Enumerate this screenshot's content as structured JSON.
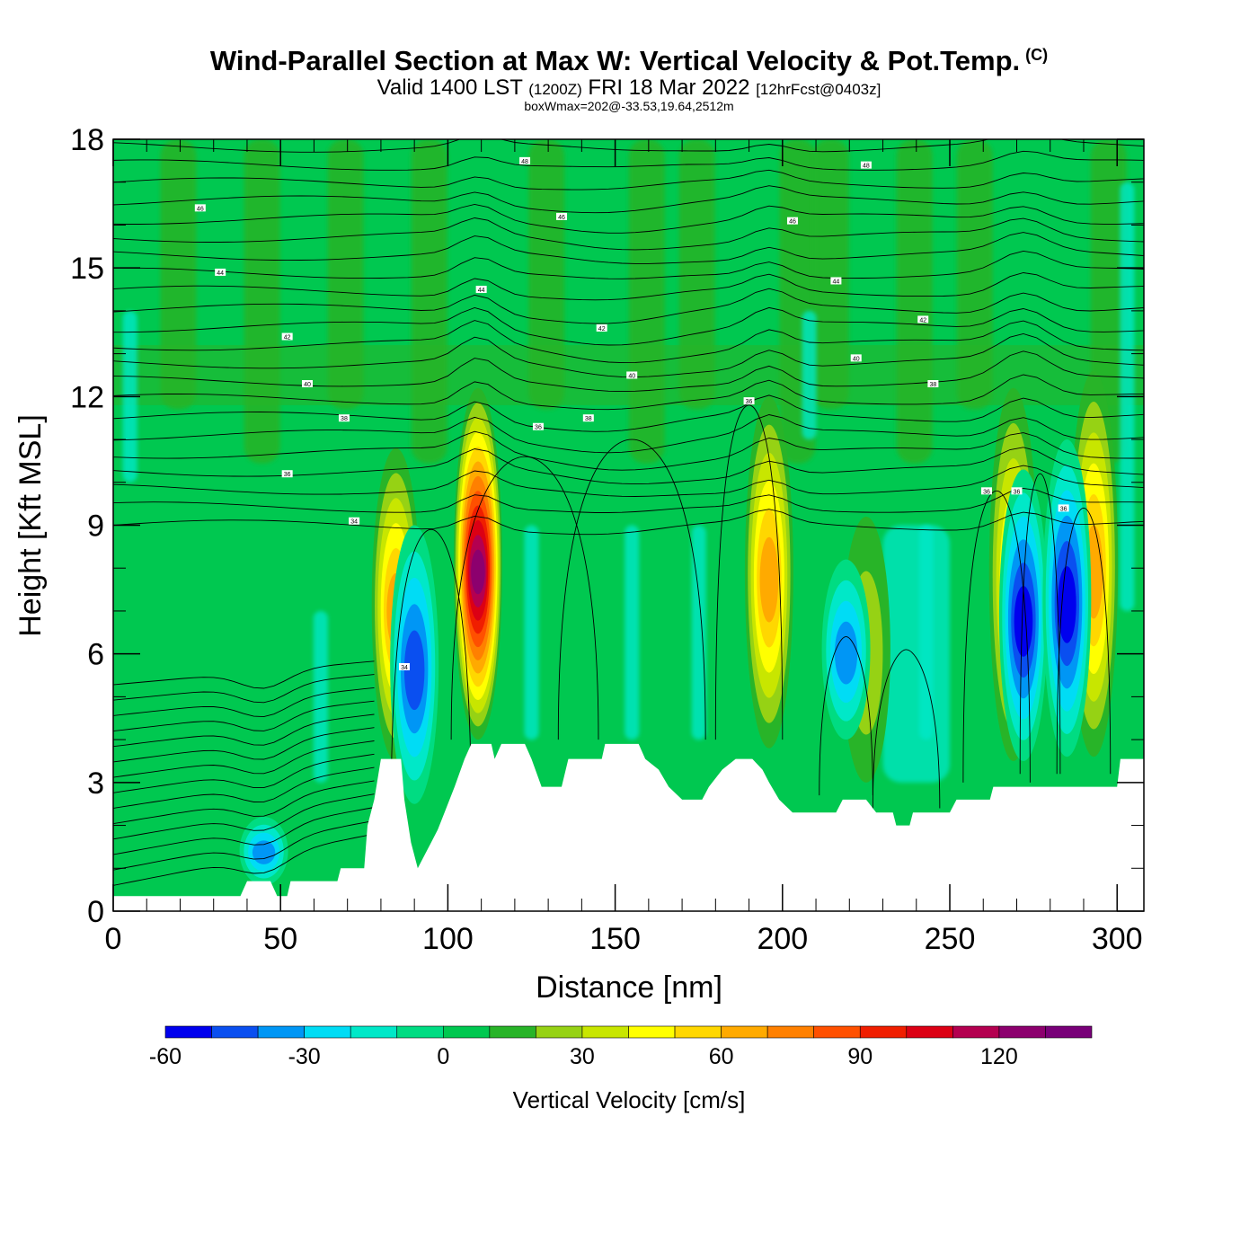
{
  "header": {
    "title": "Wind-Parallel Section at Max W: Vertical Velocity & Pot.Temp.",
    "copyright": "(C)",
    "subtitle_main": "Valid 1400 LST",
    "subtitle_zulu": "(1200Z)",
    "subtitle_date": "FRI 18 Mar 2022",
    "subtitle_fcst": "[12hrFcst@0403z]",
    "boxline": "boxWmax=202@-33.53,19.64,2512m"
  },
  "chart_data": {
    "type": "heatmap",
    "xlabel": "Distance [nm]",
    "ylabel": "Height [Kft MSL]",
    "xlim": [
      0,
      308
    ],
    "ylim": [
      0,
      18
    ],
    "xticks": [
      0,
      50,
      100,
      150,
      200,
      250,
      300
    ],
    "yticks": [
      0,
      3,
      6,
      9,
      12,
      15,
      18
    ],
    "colorbar": {
      "label": "Vertical Velocity [cm/s]",
      "min": -60,
      "max": 140,
      "step": 10,
      "tick_values": [
        -60,
        -30,
        0,
        30,
        60,
        90,
        120
      ],
      "colors": [
        "#0000ee",
        "#0a4ff0",
        "#0096f5",
        "#00dcf5",
        "#00e8c8",
        "#00dc82",
        "#00c850",
        "#28b428",
        "#96d214",
        "#c8e600",
        "#ffff00",
        "#ffd700",
        "#ffaa00",
        "#ff8000",
        "#ff5000",
        "#f01e00",
        "#dc0014",
        "#b40050",
        "#8c006e",
        "#780078"
      ]
    },
    "terrain_kft": [
      {
        "x": 0,
        "h": 0.35
      },
      {
        "x": 38,
        "h": 0.35
      },
      {
        "x": 40,
        "h": 0.7
      },
      {
        "x": 47,
        "h": 0.7
      },
      {
        "x": 49,
        "h": 0.35
      },
      {
        "x": 52,
        "h": 0.35
      },
      {
        "x": 53,
        "h": 0.7
      },
      {
        "x": 67,
        "h": 0.7
      },
      {
        "x": 68,
        "h": 1.0
      },
      {
        "x": 75,
        "h": 1.0
      },
      {
        "x": 76,
        "h": 2.0
      },
      {
        "x": 78,
        "h": 2.6
      },
      {
        "x": 80,
        "h": 3.55
      },
      {
        "x": 86,
        "h": 3.55
      },
      {
        "x": 87,
        "h": 2.6
      },
      {
        "x": 89,
        "h": 1.6
      },
      {
        "x": 91,
        "h": 1.0
      },
      {
        "x": 93,
        "h": 1.3
      },
      {
        "x": 95,
        "h": 1.6
      },
      {
        "x": 97,
        "h": 1.9
      },
      {
        "x": 99,
        "h": 2.3
      },
      {
        "x": 102,
        "h": 2.9
      },
      {
        "x": 105,
        "h": 3.55
      },
      {
        "x": 107,
        "h": 3.9
      },
      {
        "x": 113,
        "h": 3.9
      },
      {
        "x": 114,
        "h": 3.55
      },
      {
        "x": 116,
        "h": 3.9
      },
      {
        "x": 123,
        "h": 3.9
      },
      {
        "x": 125,
        "h": 3.55
      },
      {
        "x": 128,
        "h": 2.9
      },
      {
        "x": 134,
        "h": 2.9
      },
      {
        "x": 136,
        "h": 3.55
      },
      {
        "x": 146,
        "h": 3.55
      },
      {
        "x": 147,
        "h": 3.9
      },
      {
        "x": 157,
        "h": 3.9
      },
      {
        "x": 159,
        "h": 3.55
      },
      {
        "x": 163,
        "h": 3.3
      },
      {
        "x": 166,
        "h": 2.9
      },
      {
        "x": 170,
        "h": 2.6
      },
      {
        "x": 176,
        "h": 2.6
      },
      {
        "x": 178,
        "h": 2.9
      },
      {
        "x": 182,
        "h": 3.3
      },
      {
        "x": 186,
        "h": 3.55
      },
      {
        "x": 191,
        "h": 3.55
      },
      {
        "x": 194,
        "h": 3.3
      },
      {
        "x": 196,
        "h": 3.0
      },
      {
        "x": 199,
        "h": 2.6
      },
      {
        "x": 203,
        "h": 2.3
      },
      {
        "x": 216,
        "h": 2.3
      },
      {
        "x": 218,
        "h": 2.6
      },
      {
        "x": 225,
        "h": 2.6
      },
      {
        "x": 228,
        "h": 2.3
      },
      {
        "x": 233,
        "h": 2.3
      },
      {
        "x": 234,
        "h": 2.0
      },
      {
        "x": 238,
        "h": 2.0
      },
      {
        "x": 239,
        "h": 2.3
      },
      {
        "x": 250,
        "h": 2.3
      },
      {
        "x": 252,
        "h": 2.6
      },
      {
        "x": 262,
        "h": 2.6
      },
      {
        "x": 263,
        "h": 2.9
      },
      {
        "x": 300,
        "h": 2.9
      },
      {
        "x": 301,
        "h": 3.55
      },
      {
        "x": 308,
        "h": 3.55
      }
    ],
    "updraft_cores": [
      {
        "x": 84.5,
        "z_bottom": 3.5,
        "z_top": 10.8,
        "w_max": 72
      },
      {
        "x": 109,
        "z_bottom": 4.0,
        "z_top": 12.2,
        "w_max": 128
      },
      {
        "x": 196,
        "z_bottom": 3.8,
        "z_top": 12.0,
        "w_max": 68
      },
      {
        "x": 269,
        "z_bottom": 3.5,
        "z_top": 12.2,
        "w_max": 56
      },
      {
        "x": 293,
        "z_bottom": 3.6,
        "z_top": 12.6,
        "w_max": 72
      },
      {
        "x": 225,
        "z_bottom": 3.0,
        "z_top": 9.2,
        "w_max": 28
      }
    ],
    "downdraft_cores": [
      {
        "x": 90,
        "z_bottom": 2.5,
        "z_top": 9.0,
        "w_min": -52
      },
      {
        "x": 272,
        "z_bottom": 3.5,
        "z_top": 10.3,
        "w_min": -58
      },
      {
        "x": 285,
        "z_bottom": 3.6,
        "z_top": 11.0,
        "w_min": -58
      },
      {
        "x": 45,
        "z_bottom": 0.6,
        "z_top": 2.2,
        "w_min": -35
      },
      {
        "x": 219,
        "z_bottom": 4.0,
        "z_top": 8.2,
        "w_min": -40
      }
    ],
    "theta_contour_labels": [
      {
        "x": 123,
        "z": 17.5,
        "label": "48"
      },
      {
        "x": 225,
        "z": 17.4,
        "label": "48"
      },
      {
        "x": 26,
        "z": 16.4,
        "label": "46"
      },
      {
        "x": 134,
        "z": 16.2,
        "label": "46"
      },
      {
        "x": 203,
        "z": 16.1,
        "label": "46"
      },
      {
        "x": 32,
        "z": 14.9,
        "label": "44"
      },
      {
        "x": 110,
        "z": 14.5,
        "label": "44"
      },
      {
        "x": 216,
        "z": 14.7,
        "label": "44"
      },
      {
        "x": 52,
        "z": 13.4,
        "label": "42"
      },
      {
        "x": 146,
        "z": 13.6,
        "label": "42"
      },
      {
        "x": 242,
        "z": 13.8,
        "label": "42"
      },
      {
        "x": 58,
        "z": 12.3,
        "label": "40"
      },
      {
        "x": 155,
        "z": 12.5,
        "label": "40"
      },
      {
        "x": 222,
        "z": 12.9,
        "label": "40"
      },
      {
        "x": 69,
        "z": 11.5,
        "label": "38"
      },
      {
        "x": 142,
        "z": 11.5,
        "label": "38"
      },
      {
        "x": 245,
        "z": 12.3,
        "label": "38"
      },
      {
        "x": 190,
        "z": 11.9,
        "label": "36"
      },
      {
        "x": 127,
        "z": 11.3,
        "label": "36"
      },
      {
        "x": 52,
        "z": 10.2,
        "label": "36"
      },
      {
        "x": 72,
        "z": 9.1,
        "label": "34"
      },
      {
        "x": 87,
        "z": 5.7,
        "label": "34"
      },
      {
        "x": 261,
        "z": 9.8,
        "label": "36"
      },
      {
        "x": 270,
        "z": 9.8,
        "label": "36"
      },
      {
        "x": 284,
        "z": 9.4,
        "label": "36"
      }
    ]
  }
}
